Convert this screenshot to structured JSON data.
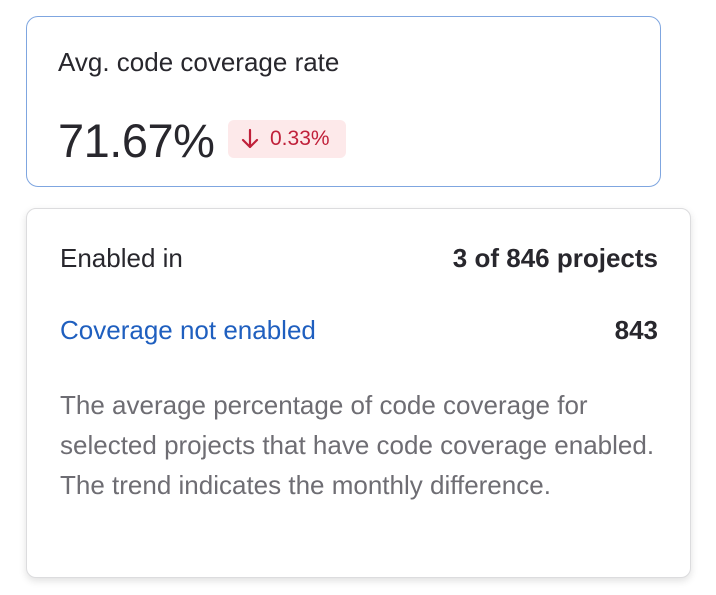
{
  "card": {
    "title": "Avg. code coverage rate",
    "value": "71.67%",
    "trend": "0.33%"
  },
  "popover": {
    "enabled_label": "Enabled in",
    "enabled_value": "3 of 846 projects",
    "not_enabled_label": "Coverage not enabled",
    "not_enabled_value": "843",
    "description": "The average percentage of code coverage for selected projects that have code coverage enabled. The trend indicates the monthly difference."
  }
}
